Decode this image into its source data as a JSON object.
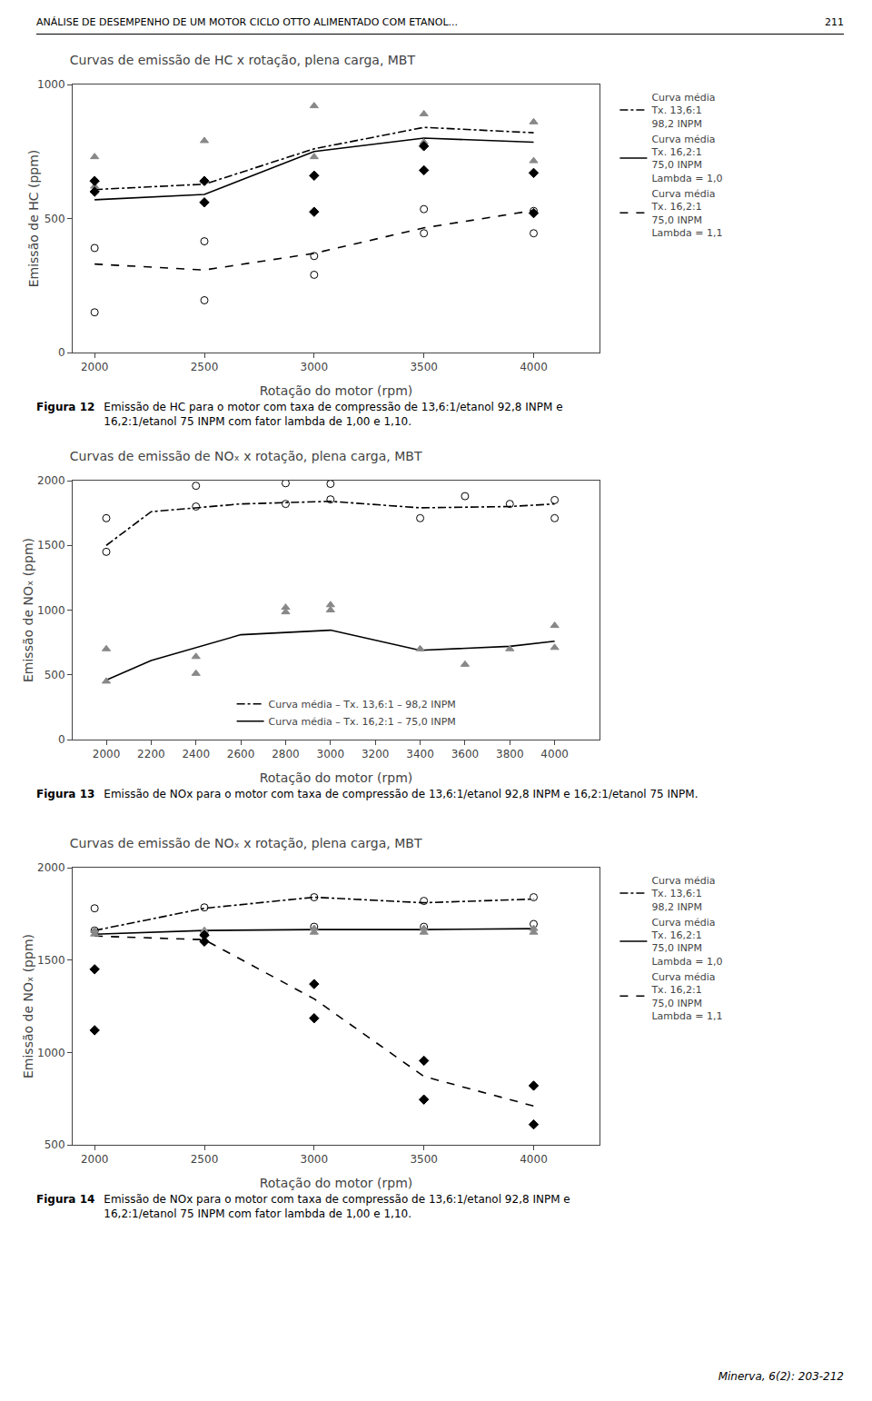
{
  "page_title": "ANÁLISE DE DESEMPENHO DE UM MOTOR CICLO OTTO ALIMENTADO COM ETANOL...",
  "page_number": "211",
  "footer": "Minerva, 6(2): 203-212",
  "chart_data": [
    {
      "type": "line",
      "title": "Curvas de emissão de HC x rotação, plena carga, MBT",
      "x_label": "Rotação do motor (rpm)",
      "y_label": "Emissão de HC (ppm)",
      "xlim": [
        1900,
        4300
      ],
      "ylim": [
        0,
        1000
      ],
      "xticks": [
        2000,
        2500,
        3000,
        3500,
        4000
      ],
      "yticks": [
        0,
        500,
        1000
      ],
      "grid": false,
      "legend": "right",
      "caption": {
        "label": "Figura 12",
        "text": "Emissão de HC para o motor com taxa de compressão de 13,6:1/etanol 92,8 INPM e\n16,2:1/etanol 75 INPM com fator lambda de 1,00 e 1,10."
      },
      "series": [
        {
          "name": "Curva média\nTx. 13,6:1\n98,2 INPM",
          "type": "line",
          "line_style": "dashdot",
          "color": "black",
          "x": [
            2000,
            2500,
            3000,
            3500,
            4000
          ],
          "values": [
            608,
            628,
            760,
            840,
            820
          ]
        },
        {
          "name": "Curva média\nTx. 16,2:1\n75,0 INPM\nLambda = 1,0",
          "type": "line",
          "line_style": "solid",
          "color": "black",
          "x": [
            2000,
            2500,
            3000,
            3500,
            4000
          ],
          "values": [
            570,
            590,
            750,
            800,
            785
          ]
        },
        {
          "name": "Curva média\nTx. 16,2:1\n75,0 INPM\nLambda = 1,1",
          "type": "line",
          "line_style": "dash",
          "color": "black",
          "x": [
            2000,
            2500,
            3000,
            3500,
            4000
          ],
          "values": [
            330,
            308,
            370,
            465,
            530
          ]
        },
        {
          "type": "scatter",
          "marker": "triangle-up",
          "color": "#888888",
          "x": [
            2000,
            2000,
            2500,
            2500,
            3000,
            3000,
            3500,
            3500,
            4000,
            4000
          ],
          "values": [
            620,
            730,
            640,
            790,
            730,
            920,
            785,
            890,
            715,
            860
          ]
        },
        {
          "type": "scatter",
          "marker": "diamond",
          "color": "black",
          "x": [
            2000,
            2000,
            2500,
            2500,
            3000,
            3000,
            3500,
            3500,
            4000,
            4000
          ],
          "values": [
            600,
            640,
            560,
            640,
            525,
            660,
            680,
            770,
            520,
            670
          ]
        },
        {
          "type": "scatter",
          "marker": "circle-open",
          "color": "black",
          "x": [
            2000,
            2000,
            2500,
            2500,
            3000,
            3000,
            3500,
            3500,
            4000,
            4000
          ],
          "values": [
            150,
            390,
            195,
            415,
            290,
            360,
            445,
            535,
            445,
            528
          ]
        }
      ]
    },
    {
      "type": "line",
      "title": "Curvas de emissão de NOₓ x rotação, plena carga, MBT",
      "x_label": "Rotação do motor (rpm)",
      "y_label": "Emissão de NOₓ (ppm)",
      "xlim": [
        1850,
        4200
      ],
      "ylim": [
        0,
        2000
      ],
      "xticks": [
        2000,
        2200,
        2400,
        2600,
        2800,
        3000,
        3200,
        3400,
        3600,
        3800,
        4000
      ],
      "yticks": [
        0,
        500,
        1000,
        1500,
        2000
      ],
      "grid": false,
      "legend": "lower center",
      "caption": {
        "label": "Figura 13",
        "text": "Emissão de NOx para o motor com taxa de compressão de 13,6:1/etanol 92,8 INPM e 16,2:1/etanol 75 INPM."
      },
      "series": [
        {
          "name": "Curva média – Tx. 13,6:1 – 98,2 INPM",
          "type": "line",
          "line_style": "dashdot",
          "color": "black",
          "x": [
            2000,
            2200,
            2600,
            3000,
            3400,
            3800,
            4000
          ],
          "values": [
            1500,
            1760,
            1820,
            1840,
            1790,
            1800,
            1820
          ]
        },
        {
          "name": "Curva média – Tx. 16,2:1 – 75,0 INPM",
          "type": "line",
          "line_style": "solid",
          "color": "black",
          "x": [
            2000,
            2200,
            2600,
            3000,
            3400,
            3800,
            4000
          ],
          "values": [
            460,
            610,
            810,
            845,
            690,
            720,
            760
          ]
        },
        {
          "type": "scatter",
          "marker": "circle-open",
          "color": "black",
          "x": [
            2000,
            2000,
            2400,
            2400,
            2800,
            2800,
            3000,
            3000,
            3400,
            3600,
            3800,
            4000,
            4000
          ],
          "values": [
            1710,
            1450,
            1800,
            1960,
            1980,
            1820,
            1855,
            1975,
            1710,
            1880,
            1820,
            1710,
            1850
          ]
        },
        {
          "type": "scatter",
          "marker": "triangle-up",
          "color": "#888888",
          "x": [
            2000,
            2000,
            2400,
            2400,
            2800,
            2800,
            3000,
            3000,
            3400,
            3600,
            3800,
            4000,
            4000
          ],
          "values": [
            450,
            700,
            510,
            640,
            985,
            1020,
            1000,
            1040,
            700,
            580,
            700,
            880,
            710
          ]
        }
      ]
    },
    {
      "type": "line",
      "title": "Curvas de emissão de NOₓ x rotação, plena carga, MBT",
      "x_label": "Rotação do motor (rpm)",
      "y_label": "Emissão de NOₓ (ppm)",
      "xlim": [
        1900,
        4300
      ],
      "ylim": [
        500,
        2000
      ],
      "xticks": [
        2000,
        2500,
        3000,
        3500,
        4000
      ],
      "yticks": [
        500,
        1000,
        1500,
        2000
      ],
      "grid": false,
      "legend": "right",
      "caption": {
        "label": "Figura 14",
        "text": "Emissão de NOx para o motor com taxa de compressão de 13,6:1/etanol 92,8 INPM e\n16,2:1/etanol 75 INPM com fator lambda de 1,00 e 1,10."
      },
      "series": [
        {
          "name": "Curva média\nTx. 13,6:1\n98,2 INPM",
          "type": "line",
          "line_style": "dashdot",
          "color": "black",
          "x": [
            2000,
            2500,
            3000,
            3500,
            4000
          ],
          "values": [
            1660,
            1780,
            1840,
            1810,
            1830
          ]
        },
        {
          "name": "Curva média\nTx. 16,2:1\n75,0 INPM\nLambda = 1,0",
          "type": "line",
          "line_style": "solid",
          "color": "black",
          "x": [
            2000,
            2500,
            3000,
            3500,
            4000
          ],
          "values": [
            1640,
            1660,
            1665,
            1665,
            1670
          ]
        },
        {
          "name": "Curva média\nTx. 16,2:1\n75,0 INPM\nLambda = 1,1",
          "type": "line",
          "line_style": "dash",
          "color": "black",
          "x": [
            2000,
            2500,
            3000,
            3500,
            4000
          ],
          "values": [
            1630,
            1610,
            1290,
            870,
            710
          ]
        },
        {
          "type": "scatter",
          "marker": "circle-open",
          "color": "black",
          "x": [
            2000,
            2000,
            2500,
            2500,
            3000,
            3000,
            3500,
            3500,
            4000,
            4000
          ],
          "values": [
            1660,
            1780,
            1640,
            1785,
            1680,
            1840,
            1680,
            1820,
            1695,
            1840
          ]
        },
        {
          "type": "scatter",
          "marker": "triangle-up",
          "color": "#888888",
          "x": [
            2000,
            2000,
            2500,
            2500,
            3000,
            3000,
            3500,
            3500,
            4000,
            4000
          ],
          "values": [
            1640,
            1660,
            1640,
            1660,
            1650,
            1670,
            1650,
            1670,
            1650,
            1670
          ]
        },
        {
          "type": "scatter",
          "marker": "diamond",
          "color": "black",
          "x": [
            2000,
            2000,
            2500,
            2500,
            3000,
            3000,
            3500,
            3500,
            4000,
            4000
          ],
          "values": [
            1120,
            1450,
            1600,
            1635,
            1370,
            1185,
            745,
            955,
            610,
            820
          ]
        }
      ]
    }
  ]
}
